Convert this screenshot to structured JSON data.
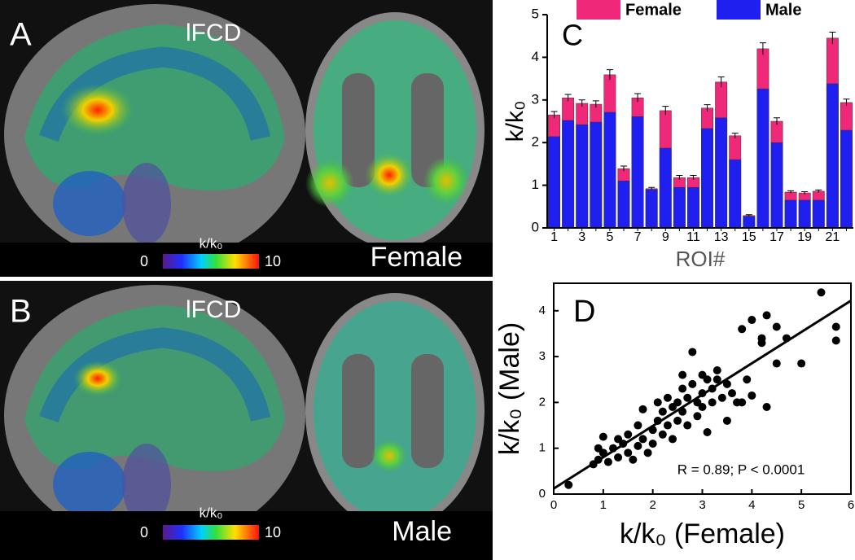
{
  "images": [
    {
      "label": "A",
      "measure": "lFCD",
      "colorbar_label": "k/k₀",
      "colorbar_min": 0,
      "colorbar_max": 10,
      "group": "Female"
    },
    {
      "label": "B",
      "measure": "lFCD",
      "colorbar_label": "k/k₀",
      "colorbar_min": 0,
      "colorbar_max": 10,
      "group": "Male"
    }
  ],
  "chart_data": [
    {
      "type": "bar",
      "panel": "C",
      "y_label": "k/k₀",
      "x_label": "ROI#",
      "categories": [
        "1",
        null,
        "3",
        null,
        "5",
        null,
        "7",
        null,
        "9",
        null,
        "11",
        null,
        "13",
        null,
        "15",
        null,
        "17",
        null,
        "19",
        null,
        "21",
        null
      ],
      "series": [
        {
          "name": "Female",
          "color": "#f0287a",
          "values": [
            2.65,
            3.05,
            2.92,
            2.9,
            3.59,
            1.39,
            3.05,
            0.92,
            2.75,
            1.18,
            1.18,
            2.81,
            3.42,
            2.16,
            0.29,
            4.2,
            2.5,
            0.84,
            0.82,
            0.86,
            4.45,
            2.94
          ],
          "errors": [
            0.08,
            0.08,
            0.08,
            0.08,
            0.12,
            0.06,
            0.1,
            0.03,
            0.1,
            0.05,
            0.05,
            0.08,
            0.12,
            0.06,
            0.02,
            0.14,
            0.08,
            0.03,
            0.03,
            0.03,
            0.14,
            0.08
          ]
        },
        {
          "name": "Male",
          "color": "#1f1ff0",
          "values": [
            2.14,
            2.52,
            2.42,
            2.48,
            2.71,
            1.1,
            2.61,
            0.9,
            1.87,
            0.95,
            0.95,
            2.33,
            2.58,
            1.6,
            0.27,
            3.26,
            2.0,
            0.65,
            0.65,
            0.65,
            3.38,
            2.29
          ]
        }
      ],
      "ylim": [
        0,
        5
      ],
      "yticks": [
        0,
        1,
        2,
        3,
        4,
        5
      ]
    },
    {
      "type": "scatter",
      "panel": "D",
      "x_label": "k/k₀ (Female)",
      "y_label": "k/k₀ (Male)",
      "annotation": "R = 0.89; P < 0.0001",
      "color": "#000000",
      "x": [
        0.3,
        0.8,
        0.9,
        1.0,
        1.0,
        1.1,
        1.2,
        1.3,
        1.4,
        1.5,
        1.5,
        1.6,
        1.7,
        1.8,
        1.8,
        1.9,
        2.0,
        2.0,
        2.1,
        2.2,
        2.2,
        2.3,
        2.3,
        2.4,
        2.4,
        2.5,
        2.5,
        2.6,
        2.6,
        2.7,
        2.7,
        2.8,
        2.8,
        2.9,
        2.9,
        3.0,
        3.0,
        3.0,
        3.1,
        3.1,
        3.2,
        3.2,
        3.3,
        3.4,
        3.5,
        3.5,
        3.6,
        3.7,
        3.8,
        3.8,
        3.9,
        4.0,
        4.0,
        4.2,
        4.2,
        4.3,
        4.3,
        4.5,
        4.5,
        4.7,
        5.0,
        5.4,
        5.7,
        5.7,
        2.1,
        1.7,
        3.3,
        2.6,
        1.3,
        0.9
      ],
      "values": [
        0.2,
        0.65,
        0.75,
        0.9,
        1.25,
        0.7,
        1.0,
        0.8,
        1.1,
        0.9,
        1.3,
        0.75,
        1.05,
        1.2,
        1.85,
        0.9,
        1.4,
        1.1,
        1.6,
        1.3,
        1.8,
        1.5,
        2.1,
        1.2,
        1.9,
        2.0,
        1.6,
        1.8,
        2.3,
        2.1,
        1.5,
        3.1,
        2.4,
        2.0,
        1.7,
        2.6,
        2.2,
        1.9,
        2.5,
        1.35,
        2.3,
        2.0,
        2.5,
        2.1,
        2.4,
        1.6,
        2.2,
        2.0,
        3.6,
        2.0,
        2.5,
        3.8,
        2.15,
        3.4,
        3.3,
        3.9,
        1.9,
        3.65,
        2.85,
        3.4,
        2.85,
        4.4,
        3.65,
        3.35,
        2.0,
        1.5,
        2.7,
        2.6,
        1.2,
        1.0
      ],
      "fit_line": {
        "x": [
          0,
          6
        ],
        "y": [
          0.12,
          4.22
        ]
      },
      "xlim": [
        0,
        6
      ],
      "xticks": [
        0,
        1,
        2,
        3,
        4,
        5,
        6
      ],
      "ylim": [
        0,
        4.6
      ],
      "yticks": [
        0,
        1,
        2,
        3,
        4
      ]
    }
  ]
}
